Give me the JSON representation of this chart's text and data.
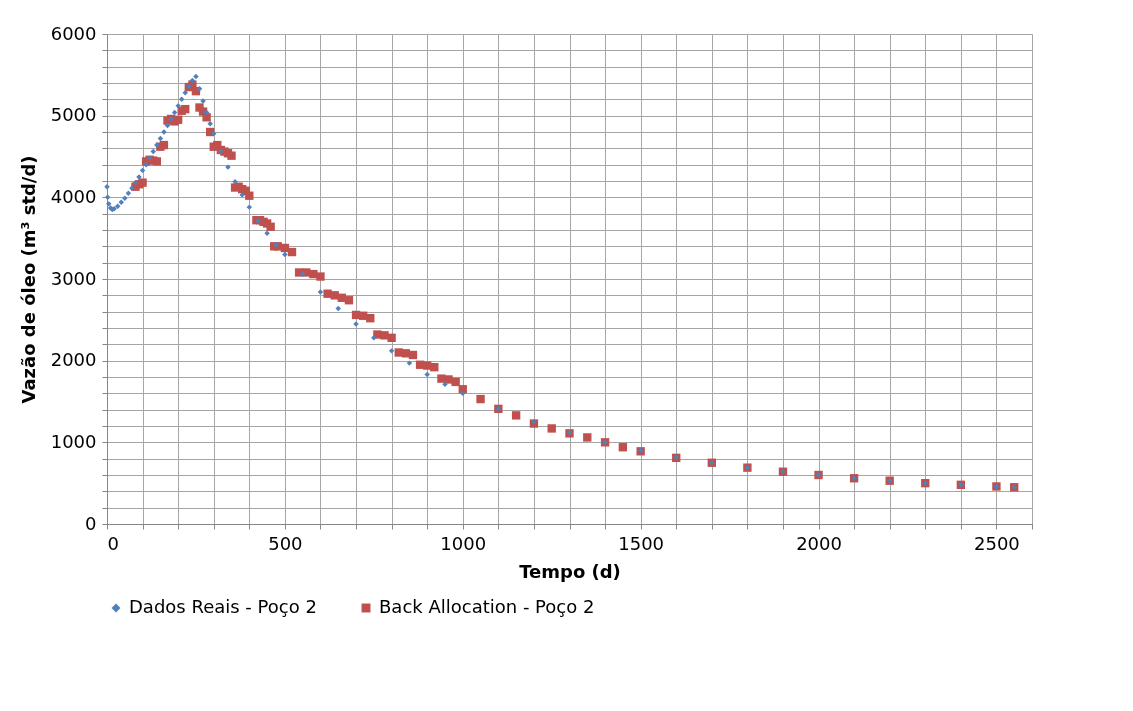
{
  "chart_data": {
    "type": "scatter",
    "xlabel": "Tempo (d)",
    "ylabel": "Vazão de óleo (m³ std/d)",
    "xlim": [
      0,
      2600
    ],
    "ylim": [
      0,
      6000
    ],
    "xticks": [
      0,
      {
        "value": 100,
        "label": null
      },
      {
        "value": 200,
        "label": null
      },
      {
        "value": 300,
        "label": null
      },
      {
        "value": 400,
        "label": null
      },
      500,
      {
        "value": 600,
        "label": null
      },
      {
        "value": 700,
        "label": null
      },
      {
        "value": 800,
        "label": null
      },
      {
        "value": 900,
        "label": null
      },
      1000,
      {
        "value": 1100,
        "label": null
      },
      {
        "value": 1200,
        "label": null
      },
      {
        "value": 1300,
        "label": null
      },
      {
        "value": 1400,
        "label": null
      },
      1500,
      {
        "value": 1600,
        "label": null
      },
      {
        "value": 1700,
        "label": null
      },
      {
        "value": 1800,
        "label": null
      },
      {
        "value": 1900,
        "label": null
      },
      2000,
      {
        "value": 2100,
        "label": null
      },
      {
        "value": 2200,
        "label": null
      },
      {
        "value": 2300,
        "label": null
      },
      {
        "value": 2400,
        "label": null
      },
      2500,
      {
        "value": 2600,
        "label": null
      }
    ],
    "yticks": [
      0,
      {
        "value": 200,
        "label": null
      },
      {
        "value": 400,
        "label": null
      },
      {
        "value": 600,
        "label": null
      },
      {
        "value": 800,
        "label": null
      },
      1000,
      {
        "value": 1200,
        "label": null
      },
      {
        "value": 1400,
        "label": null
      },
      {
        "value": 1600,
        "label": null
      },
      {
        "value": 1800,
        "label": null
      },
      2000,
      {
        "value": 2200,
        "label": null
      },
      {
        "value": 2400,
        "label": null
      },
      {
        "value": 2600,
        "label": null
      },
      {
        "value": 2800,
        "label": null
      },
      3000,
      {
        "value": 3200,
        "label": null
      },
      {
        "value": 3400,
        "label": null
      },
      {
        "value": 3600,
        "label": null
      },
      {
        "value": 3800,
        "label": null
      },
      4000,
      {
        "value": 4200,
        "label": null
      },
      {
        "value": 4400,
        "label": null
      },
      {
        "value": 4600,
        "label": null
      },
      {
        "value": 4800,
        "label": null
      },
      5000,
      {
        "value": 5200,
        "label": null
      },
      {
        "value": 5400,
        "label": null
      },
      {
        "value": 5600,
        "label": null
      },
      {
        "value": 5800,
        "label": null
      },
      6000
    ],
    "grid": true,
    "legend": "bottom",
    "series": [
      {
        "name": "Dados Reais - Poço 2",
        "color": "#4f81bd",
        "marker": "diamond",
        "x": [
          0,
          2,
          5,
          10,
          15,
          20,
          30,
          40,
          50,
          60,
          70,
          80,
          90,
          100,
          110,
          120,
          130,
          140,
          150,
          160,
          170,
          180,
          190,
          200,
          210,
          220,
          230,
          240,
          250,
          260,
          270,
          280,
          290,
          300,
          320,
          340,
          360,
          380,
          400,
          425,
          450,
          475,
          500,
          550,
          600,
          650,
          700,
          750,
          800,
          850,
          900,
          950,
          1000,
          1100,
          1200,
          1300,
          1400,
          1500,
          1600,
          1700,
          1800,
          1900,
          2000,
          2100,
          2200,
          2300,
          2400,
          2500,
          2550
        ],
        "values": [
          4130,
          4000,
          3920,
          3870,
          3850,
          3860,
          3890,
          3940,
          3990,
          4050,
          4110,
          4180,
          4250,
          4330,
          4400,
          4480,
          4560,
          4640,
          4720,
          4800,
          4880,
          4960,
          5040,
          5120,
          5200,
          5280,
          5360,
          5430,
          5480,
          5330,
          5180,
          5040,
          4900,
          4780,
          4560,
          4370,
          4190,
          4030,
          3880,
          3710,
          3560,
          3420,
          3300,
          3060,
          2840,
          2640,
          2450,
          2280,
          2120,
          1970,
          1830,
          1710,
          1600,
          1410,
          1250,
          1120,
          1000,
          900,
          820,
          750,
          690,
          640,
          600,
          560,
          530,
          500,
          480,
          460,
          450
        ]
      },
      {
        "name": "Back Allocation - Poço 2",
        "color": "#c0504d",
        "marker": "square",
        "x": [
          80,
          90,
          100,
          110,
          120,
          130,
          140,
          150,
          160,
          170,
          180,
          190,
          200,
          210,
          220,
          230,
          240,
          250,
          260,
          270,
          280,
          290,
          300,
          310,
          320,
          330,
          340,
          350,
          360,
          370,
          380,
          390,
          400,
          420,
          430,
          440,
          450,
          460,
          470,
          480,
          500,
          520,
          540,
          560,
          580,
          600,
          620,
          640,
          660,
          680,
          700,
          720,
          740,
          760,
          780,
          800,
          820,
          840,
          860,
          880,
          900,
          920,
          940,
          960,
          980,
          1000,
          1050,
          1100,
          1150,
          1200,
          1250,
          1300,
          1350,
          1400,
          1450,
          1500,
          1600,
          1700,
          1800,
          1900,
          2000,
          2100,
          2200,
          2300,
          2400,
          2500,
          2550
        ],
        "values": [
          4130,
          4160,
          4180,
          4440,
          4460,
          4450,
          4440,
          4620,
          4640,
          4940,
          4960,
          4930,
          4950,
          5060,
          5080,
          5350,
          5380,
          5300,
          5100,
          5050,
          4980,
          4800,
          4620,
          4640,
          4580,
          4560,
          4540,
          4510,
          4120,
          4130,
          4100,
          4080,
          4020,
          3720,
          3720,
          3700,
          3680,
          3640,
          3400,
          3400,
          3380,
          3330,
          3080,
          3080,
          3060,
          3030,
          2820,
          2800,
          2770,
          2740,
          2560,
          2550,
          2520,
          2320,
          2310,
          2280,
          2100,
          2090,
          2070,
          1950,
          1940,
          1920,
          1780,
          1770,
          1740,
          1650,
          1530,
          1410,
          1330,
          1230,
          1170,
          1110,
          1060,
          1000,
          940,
          890,
          810,
          750,
          690,
          640,
          600,
          560,
          530,
          500,
          480,
          460,
          450
        ]
      }
    ]
  }
}
